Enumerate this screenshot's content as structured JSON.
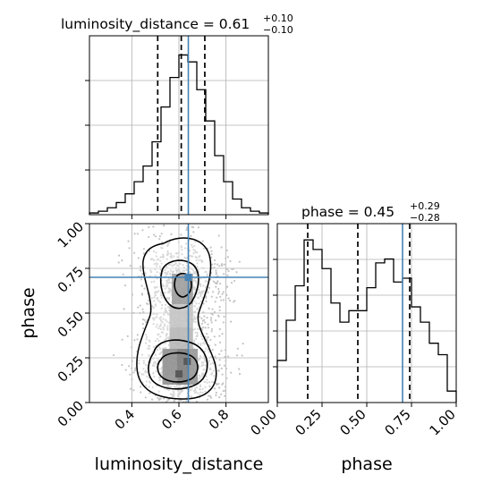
{
  "chart_data": [
    {
      "type": "histogram",
      "panel": "luminosity_distance marginal",
      "title_main": "luminosity_distance = 0.61",
      "title_sup": "+0.10",
      "title_sub": "−0.10",
      "xlim": [
        0.22,
        0.98
      ],
      "grid": true,
      "histtype": "step",
      "bin_edges": [
        0.22,
        0.258,
        0.296,
        0.334,
        0.372,
        0.41,
        0.448,
        0.486,
        0.524,
        0.562,
        0.6,
        0.638,
        0.676,
        0.714,
        0.752,
        0.79,
        0.828,
        0.866,
        0.904,
        0.942,
        0.98
      ],
      "counts": [
        1,
        2,
        4,
        7,
        12,
        19,
        28,
        42,
        62,
        79,
        92,
        88,
        72,
        54,
        34,
        19,
        9,
        4,
        2,
        1
      ],
      "quantile_lines": [
        0.51,
        0.61,
        0.71
      ],
      "truth": 0.64
    },
    {
      "type": "histogram",
      "panel": "phase marginal",
      "title_main": "phase = 0.45",
      "title_sup": "+0.29",
      "title_sub": "−0.28",
      "xlabel": "phase",
      "xlim": [
        0.0,
        1.0
      ],
      "xticks": [
        "0.00",
        "0.25",
        "0.50",
        "0.75",
        "1.00"
      ],
      "grid": true,
      "histtype": "step",
      "bin_edges": [
        0,
        0.05,
        0.1,
        0.15,
        0.2,
        0.25,
        0.3,
        0.35,
        0.4,
        0.45,
        0.5,
        0.55,
        0.6,
        0.65,
        0.7,
        0.75,
        0.8,
        0.85,
        0.9,
        0.95,
        1.0
      ],
      "counts": [
        22,
        43,
        61,
        85,
        80,
        70,
        52,
        42,
        48,
        48,
        60,
        73,
        75,
        63,
        65,
        50,
        42,
        31,
        25,
        6
      ],
      "quantile_lines": [
        0.17,
        0.45,
        0.74
      ],
      "truth": 0.7
    },
    {
      "type": "scatter",
      "panel": "2d density: phase vs luminosity_distance",
      "xlabel": "luminosity_distance",
      "ylabel": "phase",
      "xlim": [
        0.22,
        0.98
      ],
      "ylim": [
        0.0,
        1.0
      ],
      "xticks": [
        "0.4",
        "0.6",
        "0.8"
      ],
      "yticks": [
        "0.00",
        "0.25",
        "0.50",
        "0.75",
        "1.00"
      ],
      "grid": true,
      "truth": {
        "luminosity_distance": 0.64,
        "phase": 0.7
      },
      "density_blocks": [
        {
          "x": [
            0.59,
            0.64
          ],
          "y": [
            0.1,
            0.3
          ],
          "level": 1.0
        },
        {
          "x": [
            0.53,
            0.59
          ],
          "y": [
            0.1,
            0.3
          ],
          "level": 0.85
        },
        {
          "x": [
            0.64,
            0.68
          ],
          "y": [
            0.1,
            0.3
          ],
          "level": 0.8
        },
        {
          "x": [
            0.56,
            0.66
          ],
          "y": [
            0.3,
            0.42
          ],
          "level": 0.55
        },
        {
          "x": [
            0.56,
            0.66
          ],
          "y": [
            0.42,
            0.55
          ],
          "level": 0.45
        },
        {
          "x": [
            0.57,
            0.66
          ],
          "y": [
            0.55,
            0.72
          ],
          "level": 0.75
        }
      ],
      "contours": [
        {
          "center": [
            0.61,
            0.63
          ],
          "rx": 0.035,
          "ry": 0.055
        },
        {
          "center": [
            0.61,
            0.2
          ],
          "rx": 0.075,
          "ry": 0.085
        }
      ]
    }
  ]
}
